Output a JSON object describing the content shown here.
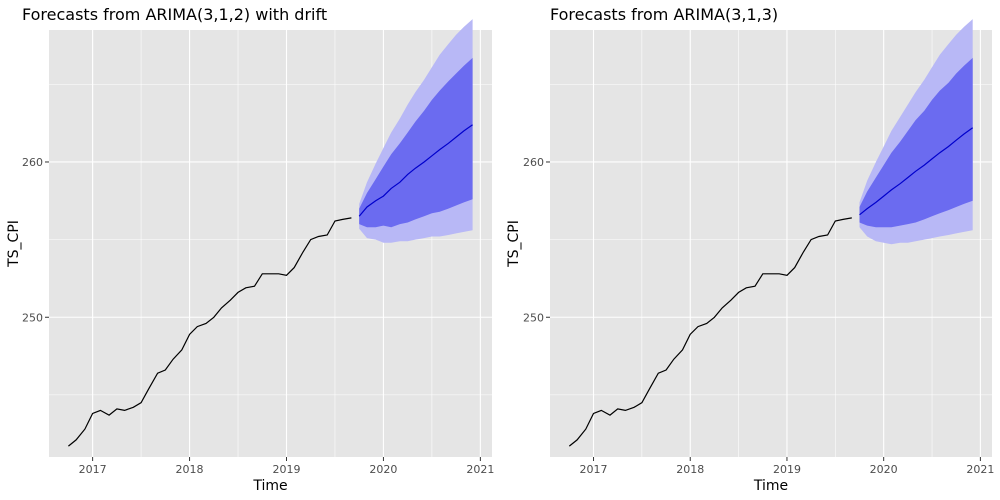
{
  "chart_data": [
    {
      "type": "line",
      "title": "Forecasts from ARIMA(3,1,2) with drift",
      "xlabel": "Time",
      "ylabel": "TS_CPI",
      "xticks": [
        "2017",
        "2018",
        "2019",
        "2020",
        "2021"
      ],
      "yticks": [
        "250",
        "260"
      ],
      "xlim": [
        2016.55,
        2021.12
      ],
      "ylim": [
        241.0,
        268.5
      ],
      "grid": true,
      "colors": {
        "history": "#000000",
        "forecast": "#0000cc",
        "band80": "#6b6bf0",
        "band95": "#b8b8f6",
        "panel_bg": "#e5e5e5",
        "grid": "#ffffff"
      },
      "history": {
        "x": [
          2016.75,
          2016.83,
          2016.92,
          2017.0,
          2017.08,
          2017.17,
          2017.25,
          2017.33,
          2017.42,
          2017.5,
          2017.58,
          2017.67,
          2017.75,
          2017.83,
          2017.92,
          2018.0,
          2018.08,
          2018.17,
          2018.25,
          2018.33,
          2018.42,
          2018.5,
          2018.58,
          2018.67,
          2018.75,
          2018.83,
          2018.92,
          2019.0,
          2019.08,
          2019.17,
          2019.25,
          2019.33,
          2019.42,
          2019.5,
          2019.58,
          2019.67
        ],
        "values": [
          241.7,
          242.1,
          242.8,
          243.8,
          244.0,
          243.7,
          244.1,
          244.0,
          244.2,
          244.5,
          245.4,
          246.4,
          246.6,
          247.3,
          247.9,
          248.9,
          249.4,
          249.6,
          250.0,
          250.6,
          251.1,
          251.6,
          251.9,
          252.0,
          252.8,
          252.8,
          252.8,
          252.7,
          253.2,
          254.2,
          255.0,
          255.2,
          255.3,
          256.2,
          256.3,
          256.4
        ]
      },
      "forecast": {
        "x": [
          2019.75,
          2019.83,
          2019.92,
          2020.0,
          2020.08,
          2020.17,
          2020.25,
          2020.33,
          2020.42,
          2020.5,
          2020.58,
          2020.67,
          2020.75,
          2020.83,
          2020.92
        ],
        "mean": [
          256.5,
          257.1,
          257.5,
          257.8,
          258.3,
          258.7,
          259.2,
          259.6,
          260.0,
          260.4,
          260.8,
          261.2,
          261.6,
          262.0,
          262.4
        ],
        "lo80": [
          256.0,
          255.8,
          255.8,
          255.9,
          255.8,
          256.0,
          256.1,
          256.3,
          256.5,
          256.7,
          256.8,
          257.0,
          257.2,
          257.4,
          257.6
        ],
        "hi80": [
          257.0,
          258.0,
          258.9,
          259.7,
          260.5,
          261.2,
          261.9,
          262.6,
          263.3,
          264.0,
          264.6,
          265.2,
          265.7,
          266.2,
          266.7
        ],
        "lo95": [
          255.7,
          255.1,
          255.0,
          254.8,
          254.8,
          254.9,
          254.9,
          255.0,
          255.1,
          255.2,
          255.2,
          255.3,
          255.4,
          255.5,
          255.6
        ],
        "hi95": [
          257.3,
          258.7,
          259.9,
          260.9,
          261.9,
          262.8,
          263.7,
          264.5,
          265.3,
          266.1,
          266.9,
          267.6,
          268.2,
          268.7,
          269.2
        ]
      }
    },
    {
      "type": "line",
      "title": "Forecasts from ARIMA(3,1,3)",
      "xlabel": "Time",
      "ylabel": "TS_CPI",
      "xticks": [
        "2017",
        "2018",
        "2019",
        "2020",
        "2021"
      ],
      "yticks": [
        "250",
        "260"
      ],
      "xlim": [
        2016.55,
        2021.12
      ],
      "ylim": [
        241.0,
        268.5
      ],
      "grid": true,
      "colors": {
        "history": "#000000",
        "forecast": "#0000cc",
        "band80": "#6b6bf0",
        "band95": "#b8b8f6",
        "panel_bg": "#e5e5e5",
        "grid": "#ffffff"
      },
      "history": {
        "x": [
          2016.75,
          2016.83,
          2016.92,
          2017.0,
          2017.08,
          2017.17,
          2017.25,
          2017.33,
          2017.42,
          2017.5,
          2017.58,
          2017.67,
          2017.75,
          2017.83,
          2017.92,
          2018.0,
          2018.08,
          2018.17,
          2018.25,
          2018.33,
          2018.42,
          2018.5,
          2018.58,
          2018.67,
          2018.75,
          2018.83,
          2018.92,
          2019.0,
          2019.08,
          2019.17,
          2019.25,
          2019.33,
          2019.42,
          2019.5,
          2019.58,
          2019.67
        ],
        "values": [
          241.7,
          242.1,
          242.8,
          243.8,
          244.0,
          243.7,
          244.1,
          244.0,
          244.2,
          244.5,
          245.4,
          246.4,
          246.6,
          247.3,
          247.9,
          248.9,
          249.4,
          249.6,
          250.0,
          250.6,
          251.1,
          251.6,
          251.9,
          252.0,
          252.8,
          252.8,
          252.8,
          252.7,
          253.2,
          254.2,
          255.0,
          255.2,
          255.3,
          256.2,
          256.3,
          256.4
        ]
      },
      "forecast": {
        "x": [
          2019.75,
          2019.83,
          2019.92,
          2020.0,
          2020.08,
          2020.17,
          2020.25,
          2020.33,
          2020.42,
          2020.5,
          2020.58,
          2020.67,
          2020.75,
          2020.83,
          2020.92
        ],
        "mean": [
          256.6,
          257.0,
          257.4,
          257.8,
          258.2,
          258.6,
          259.0,
          259.4,
          259.8,
          260.2,
          260.6,
          261.0,
          261.4,
          261.8,
          262.2
        ],
        "lo80": [
          256.1,
          255.9,
          255.8,
          255.8,
          255.8,
          255.9,
          256.0,
          256.1,
          256.3,
          256.5,
          256.7,
          256.9,
          257.1,
          257.3,
          257.5
        ],
        "hi80": [
          257.1,
          258.1,
          259.0,
          259.8,
          260.6,
          261.3,
          262.0,
          262.7,
          263.3,
          264.0,
          264.6,
          265.1,
          265.7,
          266.2,
          266.7
        ],
        "lo95": [
          255.8,
          255.2,
          254.9,
          254.8,
          254.7,
          254.8,
          254.8,
          254.9,
          255.0,
          255.1,
          255.2,
          255.3,
          255.4,
          255.5,
          255.6
        ],
        "hi95": [
          257.4,
          258.8,
          260.0,
          261.0,
          262.0,
          262.9,
          263.7,
          264.5,
          265.3,
          266.1,
          266.9,
          267.6,
          268.2,
          268.7,
          269.2
        ]
      }
    }
  ]
}
